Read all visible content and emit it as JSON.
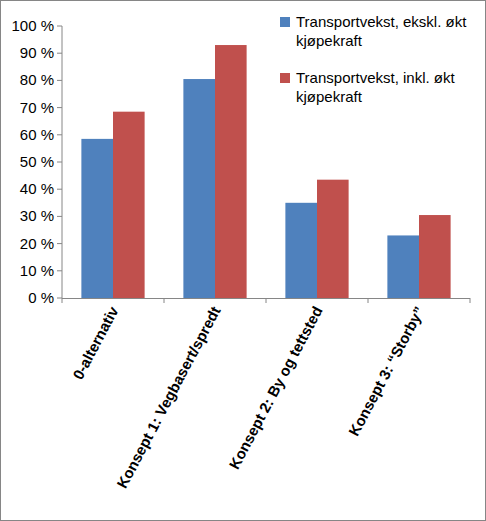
{
  "chart_data": {
    "type": "bar",
    "categories": [
      "0-alternativ",
      "Konsept 1: Vegbasert/spredt",
      "Konsept 2: By og tettsted",
      "Konsept 3: “Storby”"
    ],
    "series": [
      {
        "name": "Transportvekst, ekskl. økt kjøpekraft",
        "color": "#4f81bd",
        "values": [
          58.5,
          80.5,
          35,
          23
        ]
      },
      {
        "name": "Transportvekst, inkl. økt kjøpekraft",
        "color": "#c0504d",
        "values": [
          68.5,
          93,
          43.5,
          30.5
        ]
      }
    ],
    "ylim": [
      0,
      100
    ],
    "yticks": [
      {
        "value": 0,
        "label": "0 %"
      },
      {
        "value": 10,
        "label": "10 %"
      },
      {
        "value": 20,
        "label": "20 %"
      },
      {
        "value": 30,
        "label": "30 %"
      },
      {
        "value": 40,
        "label": "40 %"
      },
      {
        "value": 50,
        "label": "50 %"
      },
      {
        "value": 60,
        "label": "60 %"
      },
      {
        "value": 70,
        "label": "70 %"
      },
      {
        "value": 80,
        "label": "80 %"
      },
      {
        "value": 90,
        "label": "90 %"
      },
      {
        "value": 100,
        "label": "100 %"
      }
    ],
    "grid": false,
    "legend": "top-right"
  }
}
